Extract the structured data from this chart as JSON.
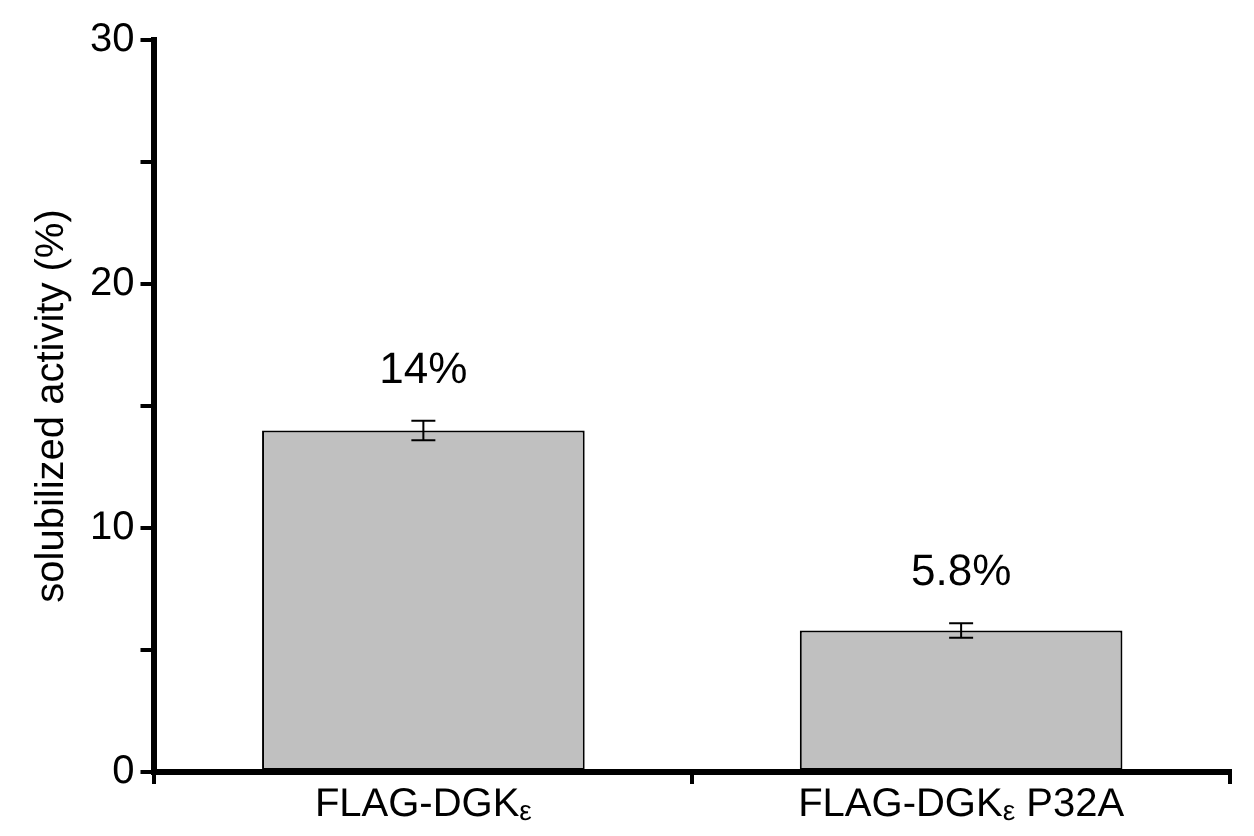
{
  "chart_data": {
    "type": "bar",
    "ylabel": "solubilized activity (%)",
    "categories": [
      "FLAG-DGK$_{ε}$",
      "FLAG-DGK$_{ε}$ P32A"
    ],
    "values": [
      14,
      5.8
    ],
    "errors": [
      0.4,
      0.3
    ],
    "value_labels": [
      "14%",
      "5.8%"
    ],
    "color": "#c0c0c0",
    "ylim": [
      0,
      30
    ],
    "yticks": [
      0,
      {
        "value": 5,
        "label": null
      },
      10,
      {
        "value": 15,
        "label": null
      },
      20,
      {
        "value": 25,
        "label": null
      },
      30
    ],
    "grid": false,
    "legend": false
  }
}
